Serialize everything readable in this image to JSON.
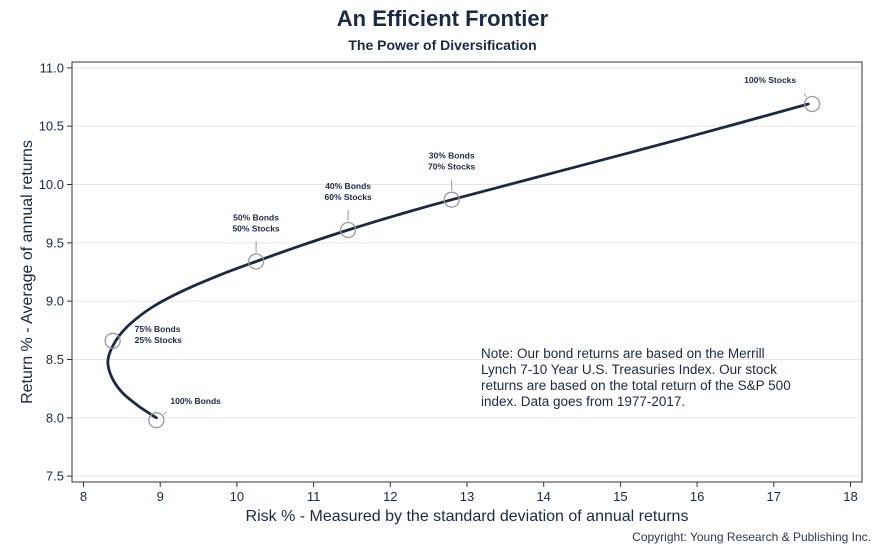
{
  "chart_data": {
    "type": "line",
    "title": "An Efficient Frontier",
    "subtitle": "The Power of Diversification",
    "xlabel": "Risk % - Measured by the standard deviation of annual returns",
    "ylabel": "Return % - Average of annual returns",
    "xlim": [
      7.85,
      18.15
    ],
    "ylim": [
      7.45,
      11.05
    ],
    "xticks": [
      "8",
      "9",
      "10",
      "11",
      "12",
      "13",
      "14",
      "15",
      "16",
      "17",
      "18"
    ],
    "yticks": [
      "7.5",
      "8.0",
      "8.5",
      "9.0",
      "9.5",
      "10.0",
      "10.5",
      "11.0"
    ],
    "grid": "horizontal",
    "series": [
      {
        "values": [
          {
            "x": 8.95,
            "y": 8.0
          },
          {
            "x": 8.72,
            "y": 8.1
          },
          {
            "x": 8.5,
            "y": 8.22
          },
          {
            "x": 8.36,
            "y": 8.36
          },
          {
            "x": 8.32,
            "y": 8.5
          },
          {
            "x": 8.42,
            "y": 8.66
          },
          {
            "x": 8.6,
            "y": 8.8
          },
          {
            "x": 8.9,
            "y": 8.95
          },
          {
            "x": 9.3,
            "y": 9.09
          },
          {
            "x": 9.8,
            "y": 9.23
          },
          {
            "x": 10.25,
            "y": 9.34
          },
          {
            "x": 10.85,
            "y": 9.48
          },
          {
            "x": 11.45,
            "y": 9.61
          },
          {
            "x": 12.1,
            "y": 9.74
          },
          {
            "x": 12.8,
            "y": 9.87
          },
          {
            "x": 14.3,
            "y": 10.13
          },
          {
            "x": 15.9,
            "y": 10.41
          },
          {
            "x": 17.45,
            "y": 10.69
          }
        ]
      }
    ],
    "highlights": [
      {
        "x": 8.95,
        "y": 7.98,
        "label_lines": [
          "100% Bonds"
        ]
      },
      {
        "x": 8.38,
        "y": 8.66,
        "label_lines": [
          "75% Bonds",
          "25% Stocks"
        ]
      },
      {
        "x": 10.25,
        "y": 9.34,
        "label_lines": [
          "50% Bonds",
          "50% Stocks"
        ]
      },
      {
        "x": 11.45,
        "y": 9.61,
        "label_lines": [
          "40% Bonds",
          "60% Stocks"
        ]
      },
      {
        "x": 12.8,
        "y": 9.87,
        "label_lines": [
          "30% Bonds",
          "70% Stocks"
        ]
      },
      {
        "x": 17.5,
        "y": 10.69,
        "label_lines": [
          "100% Stocks"
        ]
      }
    ],
    "colors": {
      "line": "#1a2a44",
      "marker": "#999999",
      "grid": "#e6e6e6",
      "axis": "#333333"
    }
  },
  "note": "Note:  Our bond returns are based on the Merrill Lynch 7-10 Year U.S. Treasuries Index.  Our stock returns are based on the total return of the S&P 500 index.  Data goes from 1977-2017.",
  "copyright": "Copyright: Young Research & Publishing Inc."
}
